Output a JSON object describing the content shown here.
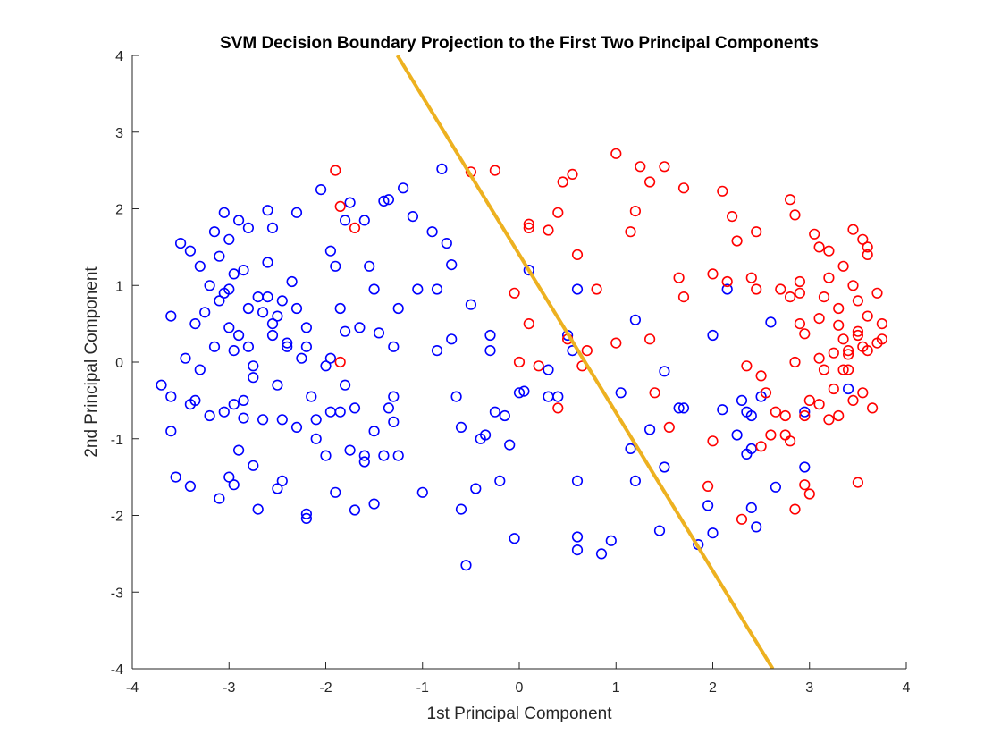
{
  "chart_data": {
    "type": "scatter",
    "title": "SVM Decision Boundary Projection to the First Two Principal Components",
    "xlabel": "1st Principal Component",
    "ylabel": "2nd Principal Component",
    "xlim": [
      -4,
      4
    ],
    "ylim": [
      -4,
      4
    ],
    "xticks": [
      -4,
      -3,
      -2,
      -1,
      0,
      1,
      2,
      3,
      4
    ],
    "yticks": [
      -4,
      -3,
      -2,
      -1,
      0,
      1,
      2,
      3,
      4
    ],
    "grid": false,
    "marker": "circle-open",
    "series": [
      {
        "color": "#0000ff",
        "points": [
          [
            -3.6,
            0.6
          ],
          [
            -3.5,
            1.55
          ],
          [
            -3.45,
            0.05
          ],
          [
            -3.4,
            -0.55
          ],
          [
            -3.35,
            0.5
          ],
          [
            -3.3,
            -0.1
          ],
          [
            -3.2,
            1.0
          ],
          [
            -3.15,
            1.7
          ],
          [
            -3.1,
            0.8
          ],
          [
            -3.05,
            1.95
          ],
          [
            -3.0,
            0.45
          ],
          [
            -2.95,
            0.15
          ],
          [
            -2.95,
            -0.55
          ],
          [
            -2.9,
            1.85
          ],
          [
            -2.85,
            1.2
          ],
          [
            -2.8,
            0.7
          ],
          [
            -2.75,
            -0.05
          ],
          [
            -2.7,
            0.85
          ],
          [
            -2.65,
            0.65
          ],
          [
            -2.6,
            1.98
          ],
          [
            -2.55,
            0.5
          ],
          [
            -2.5,
            -0.3
          ],
          [
            -2.45,
            0.8
          ],
          [
            -2.4,
            0.2
          ],
          [
            -2.35,
            1.05
          ],
          [
            -2.3,
            1.95
          ],
          [
            -2.25,
            0.05
          ],
          [
            -2.2,
            0.2
          ],
          [
            -2.15,
            -0.45
          ],
          [
            -2.1,
            -0.75
          ],
          [
            -3.6,
            -0.9
          ],
          [
            -3.55,
            -1.5
          ],
          [
            -3.4,
            -1.62
          ],
          [
            -3.2,
            -0.7
          ],
          [
            -3.1,
            -1.78
          ],
          [
            -3.0,
            -1.5
          ],
          [
            -2.95,
            -1.6
          ],
          [
            -2.9,
            -1.15
          ],
          [
            -2.75,
            -1.35
          ],
          [
            -2.7,
            -1.92
          ],
          [
            -2.5,
            -1.65
          ],
          [
            -2.45,
            -1.55
          ],
          [
            -2.2,
            -1.98
          ],
          [
            -2.2,
            -2.04
          ],
          [
            -2.0,
            -1.22
          ],
          [
            -1.95,
            -0.65
          ],
          [
            -1.9,
            -1.7
          ],
          [
            -1.8,
            -0.3
          ],
          [
            -1.75,
            -1.15
          ],
          [
            -1.7,
            -1.93
          ],
          [
            -1.6,
            -1.3
          ],
          [
            -1.5,
            -1.85
          ],
          [
            -1.5,
            -0.9
          ],
          [
            -1.4,
            -1.22
          ],
          [
            -1.35,
            -0.6
          ],
          [
            -1.3,
            -0.78
          ],
          [
            -1.25,
            -1.22
          ],
          [
            -3.7,
            -0.3
          ],
          [
            -3.6,
            -0.45
          ],
          [
            -3.35,
            -0.5
          ],
          [
            -2.05,
            2.25
          ],
          [
            -1.95,
            1.45
          ],
          [
            -1.9,
            1.25
          ],
          [
            -1.8,
            1.85
          ],
          [
            -1.75,
            2.08
          ],
          [
            -1.6,
            1.85
          ],
          [
            -1.55,
            1.25
          ],
          [
            -1.5,
            0.95
          ],
          [
            -1.45,
            0.38
          ],
          [
            -1.4,
            2.1
          ],
          [
            -1.35,
            2.12
          ],
          [
            -1.3,
            -0.45
          ],
          [
            -1.3,
            0.2
          ],
          [
            -1.25,
            0.7
          ],
          [
            -1.2,
            2.27
          ],
          [
            -1.1,
            1.9
          ],
          [
            -1.05,
            0.95
          ],
          [
            -1.0,
            -1.7
          ],
          [
            -0.9,
            1.7
          ],
          [
            -0.85,
            0.95
          ],
          [
            -0.8,
            2.52
          ],
          [
            -0.75,
            1.55
          ],
          [
            -0.7,
            0.3
          ],
          [
            -0.7,
            1.27
          ],
          [
            -0.65,
            -0.45
          ],
          [
            -0.6,
            -0.85
          ],
          [
            -0.6,
            -1.92
          ],
          [
            -0.55,
            -2.65
          ],
          [
            -0.5,
            0.75
          ],
          [
            -0.45,
            -1.65
          ],
          [
            -0.4,
            -1.0
          ],
          [
            -0.35,
            -0.95
          ],
          [
            -0.3,
            0.15
          ],
          [
            -0.25,
            -0.65
          ],
          [
            -0.2,
            -1.55
          ],
          [
            -0.15,
            -0.7
          ],
          [
            -0.1,
            -1.08
          ],
          [
            -0.05,
            -2.3
          ],
          [
            0.0,
            -0.4
          ],
          [
            0.05,
            -0.38
          ],
          [
            0.1,
            1.2
          ],
          [
            0.3,
            -0.1
          ],
          [
            0.3,
            -0.45
          ],
          [
            0.4,
            -0.45
          ],
          [
            0.5,
            0.35
          ],
          [
            0.55,
            0.15
          ],
          [
            0.6,
            -2.45
          ],
          [
            0.6,
            -2.28
          ],
          [
            0.6,
            -1.55
          ],
          [
            0.6,
            0.95
          ],
          [
            0.85,
            -2.5
          ],
          [
            0.95,
            -2.33
          ],
          [
            1.05,
            -0.4
          ],
          [
            1.15,
            -1.13
          ],
          [
            1.2,
            -1.55
          ],
          [
            1.2,
            0.55
          ],
          [
            1.35,
            -0.88
          ],
          [
            1.45,
            -2.2
          ],
          [
            1.5,
            -0.12
          ],
          [
            1.5,
            -1.37
          ],
          [
            1.65,
            -0.6
          ],
          [
            1.7,
            -0.6
          ],
          [
            1.85,
            -2.38
          ],
          [
            1.95,
            -1.87
          ],
          [
            2.0,
            0.35
          ],
          [
            2.0,
            -2.23
          ],
          [
            2.1,
            -0.62
          ],
          [
            2.15,
            0.95
          ],
          [
            2.25,
            -0.95
          ],
          [
            2.3,
            -0.5
          ],
          [
            2.35,
            -0.65
          ],
          [
            2.35,
            -1.2
          ],
          [
            2.4,
            -0.7
          ],
          [
            2.4,
            -1.13
          ],
          [
            2.4,
            -1.9
          ],
          [
            2.45,
            -2.15
          ],
          [
            2.5,
            -0.45
          ],
          [
            2.6,
            0.52
          ],
          [
            2.65,
            -1.63
          ],
          [
            2.95,
            -0.65
          ],
          [
            2.95,
            -1.37
          ],
          [
            3.4,
            -0.35
          ],
          [
            -3.05,
            0.9
          ],
          [
            -2.9,
            0.35
          ],
          [
            -2.85,
            -0.5
          ],
          [
            -3.0,
            0.95
          ],
          [
            -3.15,
            0.2
          ],
          [
            -2.6,
            0.85
          ],
          [
            -2.4,
            0.25
          ],
          [
            -2.0,
            -0.05
          ],
          [
            -1.85,
            0.7
          ],
          [
            -1.8,
            0.4
          ],
          [
            -1.65,
            0.45
          ],
          [
            -1.7,
            -0.6
          ],
          [
            -0.85,
            0.15
          ],
          [
            -0.3,
            0.35
          ],
          [
            -2.8,
            0.2
          ],
          [
            -2.55,
            0.35
          ],
          [
            -3.25,
            0.65
          ],
          [
            -2.3,
            -0.85
          ],
          [
            -2.65,
            -0.75
          ],
          [
            -2.45,
            -0.75
          ],
          [
            -3.05,
            -0.65
          ],
          [
            -1.6,
            -1.22
          ],
          [
            -2.1,
            -1.0
          ],
          [
            -1.85,
            -0.65
          ],
          [
            -2.85,
            -0.73
          ],
          [
            -2.75,
            -0.2
          ],
          [
            -2.3,
            0.7
          ],
          [
            -1.95,
            0.05
          ],
          [
            -3.3,
            1.25
          ],
          [
            -3.1,
            1.38
          ],
          [
            -2.95,
            1.15
          ],
          [
            -2.6,
            1.3
          ],
          [
            -2.55,
            1.75
          ],
          [
            -2.2,
            0.45
          ],
          [
            -3.4,
            1.45
          ],
          [
            -3.0,
            1.6
          ],
          [
            -2.8,
            1.75
          ],
          [
            -2.5,
            0.6
          ]
        ]
      },
      {
        "color": "#ff0000",
        "points": [
          [
            -1.9,
            2.5
          ],
          [
            -1.85,
            2.03
          ],
          [
            -1.7,
            1.75
          ],
          [
            -1.85,
            0.0
          ],
          [
            -0.5,
            2.48
          ],
          [
            -0.25,
            2.5
          ],
          [
            -0.05,
            0.9
          ],
          [
            0.0,
            0.0
          ],
          [
            0.1,
            1.8
          ],
          [
            0.1,
            1.75
          ],
          [
            0.1,
            0.5
          ],
          [
            0.2,
            -0.05
          ],
          [
            0.3,
            1.72
          ],
          [
            0.4,
            1.95
          ],
          [
            0.4,
            -0.6
          ],
          [
            0.45,
            2.35
          ],
          [
            0.5,
            0.3
          ],
          [
            0.55,
            2.45
          ],
          [
            0.6,
            1.4
          ],
          [
            0.65,
            -0.05
          ],
          [
            0.7,
            0.15
          ],
          [
            0.8,
            0.95
          ],
          [
            1.0,
            2.72
          ],
          [
            1.0,
            0.25
          ],
          [
            1.15,
            1.7
          ],
          [
            1.2,
            1.97
          ],
          [
            1.25,
            2.55
          ],
          [
            1.35,
            2.35
          ],
          [
            1.35,
            0.3
          ],
          [
            1.4,
            -0.4
          ],
          [
            1.5,
            2.55
          ],
          [
            1.55,
            -0.85
          ],
          [
            1.65,
            1.1
          ],
          [
            1.7,
            0.85
          ],
          [
            1.7,
            2.27
          ],
          [
            1.95,
            -1.62
          ],
          [
            2.0,
            -1.03
          ],
          [
            2.0,
            1.15
          ],
          [
            2.1,
            2.23
          ],
          [
            2.15,
            1.05
          ],
          [
            2.2,
            1.9
          ],
          [
            2.25,
            1.58
          ],
          [
            2.3,
            -2.05
          ],
          [
            2.35,
            -0.05
          ],
          [
            2.4,
            1.1
          ],
          [
            2.45,
            0.95
          ],
          [
            2.45,
            1.7
          ],
          [
            2.5,
            -0.18
          ],
          [
            2.55,
            -0.4
          ],
          [
            2.5,
            -1.1
          ],
          [
            2.6,
            -0.95
          ],
          [
            2.65,
            -0.65
          ],
          [
            2.7,
            0.95
          ],
          [
            2.75,
            -0.7
          ],
          [
            2.75,
            -0.95
          ],
          [
            2.8,
            2.12
          ],
          [
            2.85,
            1.92
          ],
          [
            2.8,
            0.85
          ],
          [
            2.8,
            -1.03
          ],
          [
            2.85,
            0.0
          ],
          [
            2.9,
            0.9
          ],
          [
            2.9,
            1.05
          ],
          [
            2.95,
            0.37
          ],
          [
            2.95,
            -1.6
          ],
          [
            3.0,
            -1.72
          ],
          [
            3.0,
            -0.5
          ],
          [
            3.05,
            1.67
          ],
          [
            3.1,
            1.5
          ],
          [
            3.1,
            0.57
          ],
          [
            3.1,
            -0.55
          ],
          [
            3.2,
            1.45
          ],
          [
            3.2,
            1.1
          ],
          [
            3.25,
            -0.35
          ],
          [
            3.3,
            0.48
          ],
          [
            3.3,
            -0.7
          ],
          [
            3.35,
            1.25
          ],
          [
            3.35,
            0.3
          ],
          [
            3.4,
            0.1
          ],
          [
            3.4,
            -0.1
          ],
          [
            3.45,
            1.73
          ],
          [
            3.45,
            1.0
          ],
          [
            3.5,
            0.8
          ],
          [
            3.5,
            0.35
          ],
          [
            3.55,
            0.2
          ],
          [
            3.55,
            -0.4
          ],
          [
            3.6,
            1.4
          ],
          [
            3.6,
            0.6
          ],
          [
            3.65,
            -0.6
          ],
          [
            3.7,
            0.25
          ],
          [
            3.75,
            0.5
          ],
          [
            2.85,
            -1.92
          ],
          [
            3.15,
            -0.1
          ],
          [
            3.45,
            -0.5
          ],
          [
            3.5,
            -1.57
          ],
          [
            3.55,
            1.6
          ],
          [
            3.6,
            1.5
          ],
          [
            3.5,
            0.4
          ],
          [
            3.4,
            0.15
          ],
          [
            3.3,
            0.7
          ],
          [
            3.25,
            0.12
          ],
          [
            3.2,
            -0.75
          ],
          [
            3.15,
            0.85
          ],
          [
            3.6,
            0.15
          ],
          [
            3.7,
            0.9
          ],
          [
            3.75,
            0.3
          ],
          [
            3.35,
            -0.1
          ],
          [
            3.1,
            0.05
          ],
          [
            2.95,
            -0.7
          ],
          [
            2.9,
            0.5
          ]
        ]
      }
    ],
    "decision_boundary": {
      "color": "#edb120",
      "points": [
        [
          -1.26,
          4.0
        ],
        [
          2.62,
          -4.0
        ]
      ]
    }
  }
}
